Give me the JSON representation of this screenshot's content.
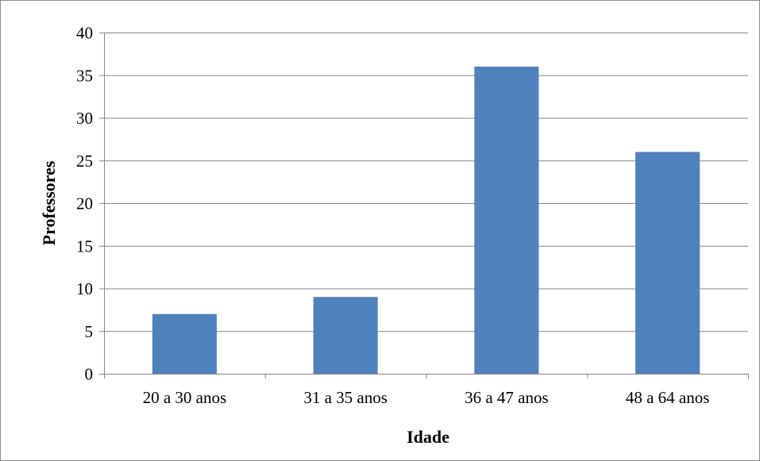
{
  "chart_data": {
    "type": "bar",
    "title": "",
    "categories": [
      "20 a 30 anos",
      "31 a 35 anos",
      "36 a 47 anos",
      "48 a 64 anos"
    ],
    "values": [
      7,
      9,
      36,
      26
    ],
    "xlabel": "Idade",
    "ylabel": "Professores",
    "ylim": [
      0,
      40
    ],
    "yticks": [
      0,
      5,
      10,
      15,
      20,
      25,
      30,
      35,
      40
    ],
    "grid": true,
    "legend": "none",
    "colors": {
      "bar": "#4f81bd",
      "grid": "#868686",
      "frame": "#8c8c8c"
    }
  }
}
